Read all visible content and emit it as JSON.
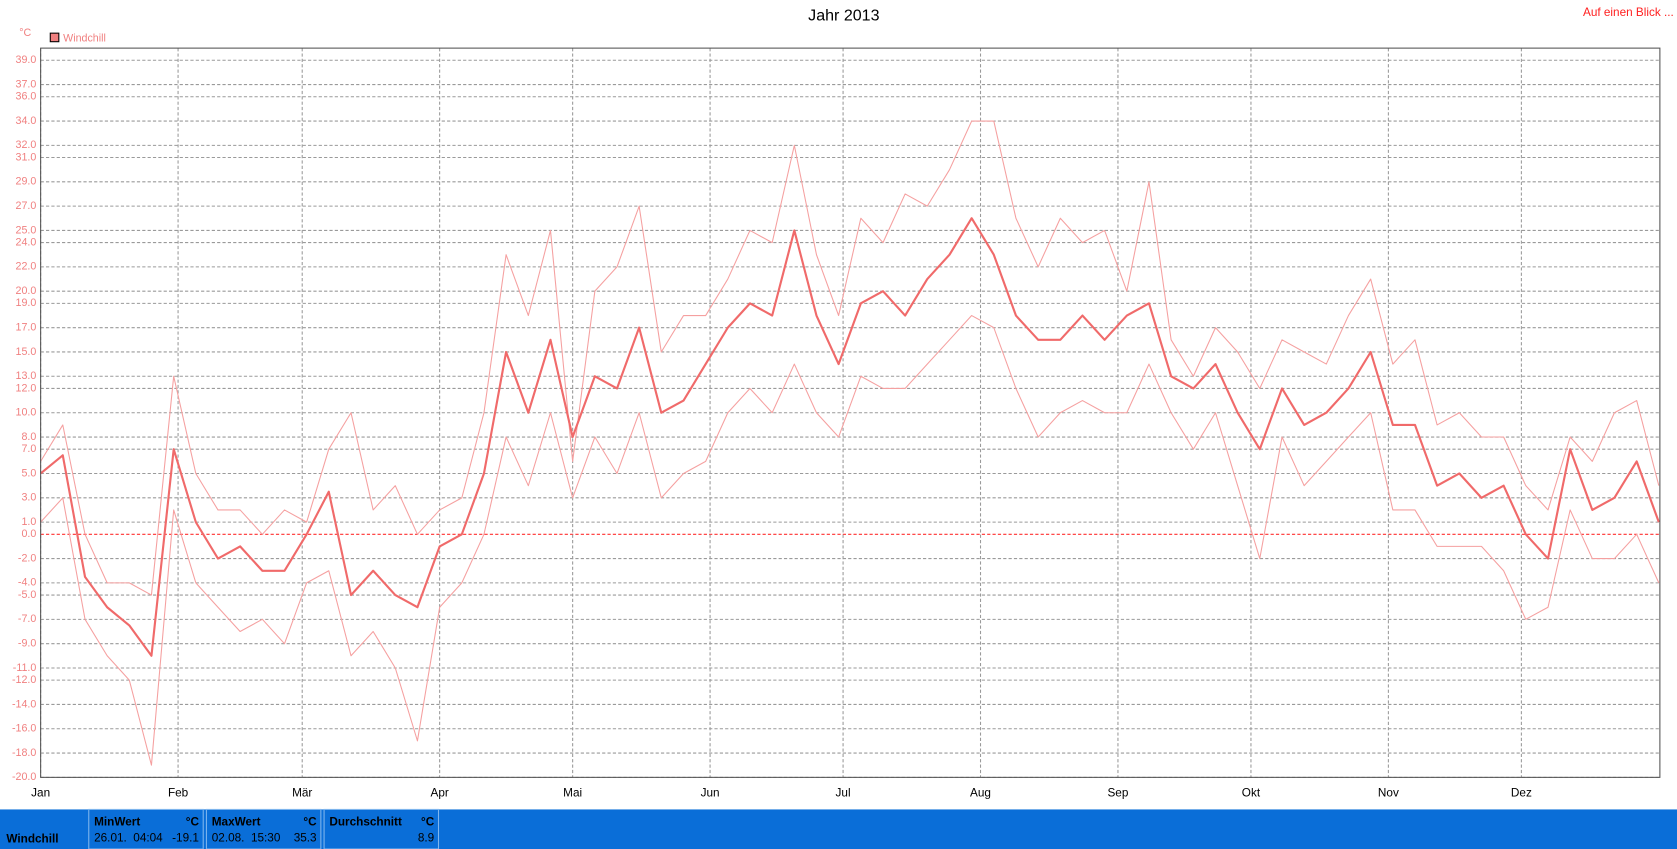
{
  "chart_data": {
    "type": "line",
    "title": "Jahr 2013",
    "y_unit": "°C",
    "legend": "Windchill",
    "legend_color": "#f08080",
    "link": "Auf einen Blick ...",
    "x": [
      0,
      5,
      10,
      15,
      20,
      25,
      30,
      35,
      40,
      45,
      50,
      55,
      60,
      65,
      70,
      75,
      80,
      85,
      90,
      95,
      100,
      105,
      110,
      115,
      120,
      125,
      130,
      135,
      140,
      145,
      150,
      155,
      160,
      165,
      170,
      175,
      180,
      185,
      190,
      195,
      200,
      205,
      210,
      215,
      220,
      225,
      230,
      235,
      240,
      245,
      250,
      255,
      260,
      265,
      270,
      275,
      280,
      285,
      290,
      295,
      300,
      305,
      310,
      315,
      320,
      325,
      330,
      335,
      340,
      345,
      350,
      355,
      360,
      365
    ],
    "xlim": [
      0,
      365
    ],
    "xticks": [
      {
        "value": 0,
        "label": "Jan"
      },
      {
        "value": 31,
        "label": "Feb"
      },
      {
        "value": 59,
        "label": "Mär"
      },
      {
        "value": 90,
        "label": "Apr"
      },
      {
        "value": 120,
        "label": "Mai"
      },
      {
        "value": 151,
        "label": "Jun"
      },
      {
        "value": 181,
        "label": "Jul"
      },
      {
        "value": 212,
        "label": "Aug"
      },
      {
        "value": 243,
        "label": "Sep"
      },
      {
        "value": 273,
        "label": "Okt"
      },
      {
        "value": 304,
        "label": "Nov"
      },
      {
        "value": 334,
        "label": "Dez"
      }
    ],
    "ylim": [
      -20,
      40
    ],
    "yticks": [
      {
        "value": 39,
        "label": "39.0"
      },
      {
        "value": 37,
        "label": "37.0"
      },
      {
        "value": 36,
        "label": "36.0"
      },
      {
        "value": 34,
        "label": "34.0"
      },
      {
        "value": 32,
        "label": "32.0"
      },
      {
        "value": 31,
        "label": "31.0"
      },
      {
        "value": 29,
        "label": "29.0"
      },
      {
        "value": 27,
        "label": "27.0"
      },
      {
        "value": 25,
        "label": "25.0"
      },
      {
        "value": 24,
        "label": "24.0"
      },
      {
        "value": 22,
        "label": "22.0"
      },
      {
        "value": 20,
        "label": "20.0"
      },
      {
        "value": 19,
        "label": "19.0"
      },
      {
        "value": 17,
        "label": "17.0"
      },
      {
        "value": 15,
        "label": "15.0"
      },
      {
        "value": 13,
        "label": "13.0"
      },
      {
        "value": 12,
        "label": "12.0"
      },
      {
        "value": 10,
        "label": "10.0"
      },
      {
        "value": 8,
        "label": "8.0"
      },
      {
        "value": 7,
        "label": "7.0"
      },
      {
        "value": 5,
        "label": "5.0"
      },
      {
        "value": 3,
        "label": "3.0"
      },
      {
        "value": 1,
        "label": "1.0"
      },
      {
        "value": 0,
        "label": "0.0"
      },
      {
        "value": -2,
        "label": "-2.0"
      },
      {
        "value": -4,
        "label": "-4.0"
      },
      {
        "value": -5,
        "label": "-5.0"
      },
      {
        "value": -7,
        "label": "-7.0"
      },
      {
        "value": -9,
        "label": "-9.0"
      },
      {
        "value": -11,
        "label": "-11.0"
      },
      {
        "value": -12,
        "label": "-12.0"
      },
      {
        "value": -14,
        "label": "-14.0"
      },
      {
        "value": -16,
        "label": "-16.0"
      },
      {
        "value": -18,
        "label": "-18.0"
      },
      {
        "value": -20,
        "label": "-20.0"
      }
    ],
    "grid": true,
    "zero_line_color": "#ff3030",
    "series": [
      {
        "color": "#f5a0a0",
        "width": 1,
        "values": [
          6,
          9,
          0,
          -4,
          -4,
          -5,
          13,
          5,
          2,
          2,
          0,
          2,
          1,
          7,
          10,
          2,
          4,
          0,
          2,
          3,
          10,
          23,
          18,
          25,
          6,
          20,
          22,
          27,
          15,
          18,
          18,
          21,
          25,
          24,
          32,
          23,
          18,
          26,
          24,
          28,
          27,
          30,
          34,
          34,
          26,
          22,
          26,
          24,
          25,
          20,
          29,
          16,
          13,
          17,
          15,
          12,
          16,
          15,
          14,
          18,
          21,
          14,
          16,
          9,
          10,
          8,
          8,
          4,
          2,
          8,
          6,
          10,
          11,
          4
        ]
      },
      {
        "color": "#f06a6a",
        "width": 2,
        "values": [
          5,
          6.5,
          -3.5,
          -6,
          -7.5,
          -10,
          7,
          1,
          -2,
          -1,
          -3,
          -3,
          0,
          3.5,
          -5,
          -3,
          -5,
          -6,
          -1,
          0,
          5,
          15,
          10,
          16,
          8,
          13,
          12,
          17,
          10,
          11,
          14,
          17,
          19,
          18,
          25,
          18,
          14,
          19,
          20,
          18,
          21,
          23,
          26,
          23,
          18,
          16,
          16,
          18,
          16,
          18,
          19,
          13,
          12,
          14,
          10,
          7,
          12,
          9,
          10,
          12,
          15,
          9,
          9,
          4,
          5,
          3,
          4,
          0,
          -2,
          7,
          2,
          3,
          6,
          1
        ]
      },
      {
        "color": "#f5a0a0",
        "width": 1,
        "values": [
          1,
          3,
          -7,
          -10,
          -12,
          -19,
          2,
          -4,
          -6,
          -8,
          -7,
          -9,
          -4,
          -3,
          -10,
          -8,
          -11,
          -17,
          -6,
          -4,
          0,
          8,
          4,
          10,
          3,
          8,
          5,
          10,
          3,
          5,
          6,
          10,
          12,
          10,
          14,
          10,
          8,
          13,
          12,
          12,
          14,
          16,
          18,
          17,
          12,
          8,
          10,
          11,
          10,
          10,
          14,
          10,
          7,
          10,
          4,
          -2,
          8,
          4,
          6,
          8,
          10,
          2,
          2,
          -1,
          -1,
          -1,
          -3,
          -7,
          -6,
          2,
          -2,
          -2,
          0,
          -4
        ]
      }
    ]
  },
  "summary": {
    "name": "Windchill",
    "min": {
      "label": "MinWert",
      "unit": "°C",
      "time": "26.01.  04:04",
      "value": -19.1
    },
    "max": {
      "label": "MaxWert",
      "unit": "°C",
      "time": "02.08.  15:30",
      "value": 35.3
    },
    "avg": {
      "label": "Durchschnitt",
      "unit": "°C",
      "value": 8.9
    }
  }
}
